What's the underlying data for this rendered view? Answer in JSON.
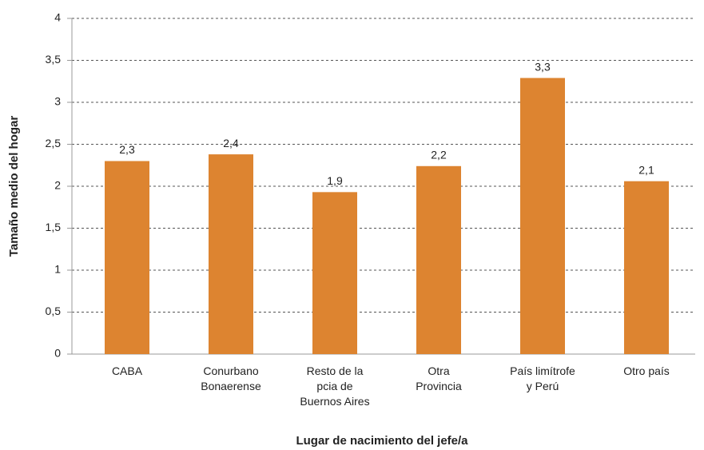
{
  "chart_data": {
    "type": "bar",
    "x_label": "Lugar de nacimiento del jefe/a",
    "y_label": "Tamaño medio del hogar",
    "categories": [
      [
        "CABA"
      ],
      [
        "Conurbano",
        "Bonaerense"
      ],
      [
        "Resto de la",
        "pcia de",
        "Buernos Aires"
      ],
      [
        "Otra",
        "Provincia"
      ],
      [
        "País limítrofe",
        "y Perú"
      ],
      [
        "Otro país"
      ]
    ],
    "values": [
      2.3,
      2.38,
      1.93,
      2.24,
      3.29,
      2.06
    ],
    "value_labels": [
      "2,3",
      "2,4",
      "1,9",
      "2,2",
      "3,3",
      "2,1"
    ],
    "color": "#dd8430",
    "ylim": [
      0,
      4
    ],
    "yticks": [
      0,
      {
        "value": 0.5,
        "label": "0,5"
      },
      1,
      {
        "value": 1.5,
        "label": "1,5"
      },
      2,
      {
        "value": 2.5,
        "label": "2,5"
      },
      3,
      {
        "value": 3.5,
        "label": "3,5"
      },
      4
    ],
    "grid": true
  }
}
